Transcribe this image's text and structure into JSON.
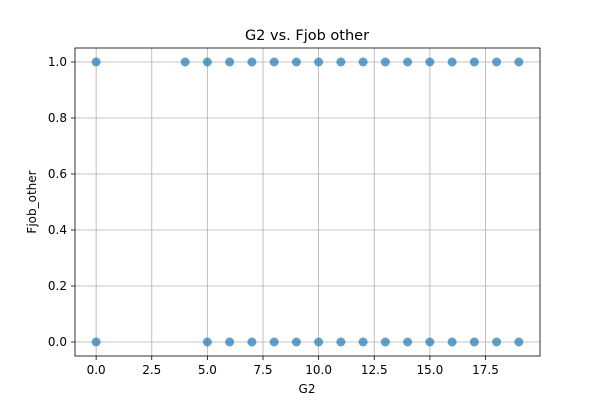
{
  "chart_data": {
    "type": "scatter",
    "title": "G2 vs. Fjob other",
    "xlabel": "G2",
    "ylabel": "Fjob_other",
    "xlim": [
      -0.95,
      19.95
    ],
    "ylim": [
      -0.05,
      1.05
    ],
    "xticks": [
      0.0,
      2.5,
      5.0,
      7.5,
      10.0,
      12.5,
      15.0,
      17.5
    ],
    "xtick_labels": [
      "0.0",
      "2.5",
      "5.0",
      "7.5",
      "10.0",
      "12.5",
      "15.0",
      "17.5"
    ],
    "yticks": [
      0.0,
      0.2,
      0.4,
      0.6,
      0.8,
      1.0
    ],
    "ytick_labels": [
      "0.0",
      "0.2",
      "0.4",
      "0.6",
      "0.8",
      "1.0"
    ],
    "grid": true,
    "marker_color": "#1f77b4",
    "points": [
      {
        "x": 0,
        "y": 1
      },
      {
        "x": 4,
        "y": 1
      },
      {
        "x": 5,
        "y": 1
      },
      {
        "x": 6,
        "y": 1
      },
      {
        "x": 7,
        "y": 1
      },
      {
        "x": 8,
        "y": 1
      },
      {
        "x": 9,
        "y": 1
      },
      {
        "x": 10,
        "y": 1
      },
      {
        "x": 11,
        "y": 1
      },
      {
        "x": 12,
        "y": 1
      },
      {
        "x": 13,
        "y": 1
      },
      {
        "x": 14,
        "y": 1
      },
      {
        "x": 15,
        "y": 1
      },
      {
        "x": 16,
        "y": 1
      },
      {
        "x": 17,
        "y": 1
      },
      {
        "x": 18,
        "y": 1
      },
      {
        "x": 19,
        "y": 1
      },
      {
        "x": 0,
        "y": 0
      },
      {
        "x": 5,
        "y": 0
      },
      {
        "x": 6,
        "y": 0
      },
      {
        "x": 7,
        "y": 0
      },
      {
        "x": 8,
        "y": 0
      },
      {
        "x": 9,
        "y": 0
      },
      {
        "x": 10,
        "y": 0
      },
      {
        "x": 11,
        "y": 0
      },
      {
        "x": 12,
        "y": 0
      },
      {
        "x": 13,
        "y": 0
      },
      {
        "x": 14,
        "y": 0
      },
      {
        "x": 15,
        "y": 0
      },
      {
        "x": 16,
        "y": 0
      },
      {
        "x": 17,
        "y": 0
      },
      {
        "x": 18,
        "y": 0
      },
      {
        "x": 19,
        "y": 0
      }
    ]
  }
}
